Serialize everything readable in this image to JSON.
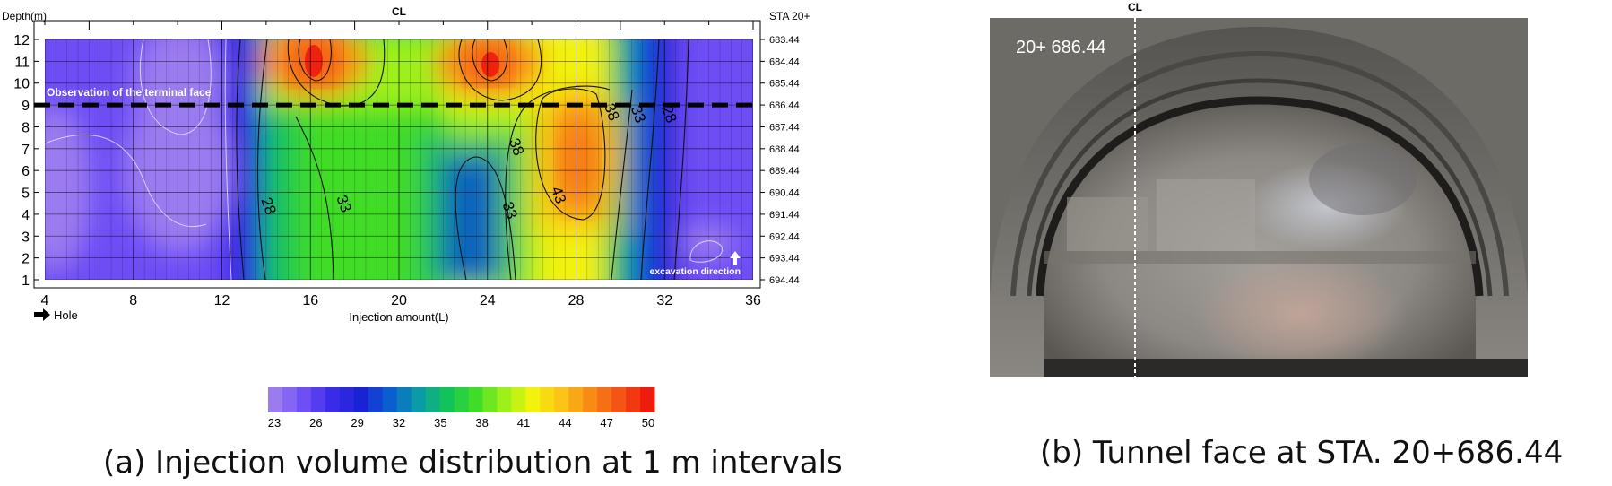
{
  "panel_a": {
    "caption": "(a) Injection volume distribution at 1 m intervals",
    "cl_label": "CL",
    "depth_label": "Depth(m)",
    "sta_label": "STA 20+",
    "hole_label": "Hole",
    "terminal_label": "Observation of the terminal face",
    "excavation_label": "excavation direction"
  },
  "panel_b": {
    "caption": "(b) Tunnel face at STA. 20+686.44",
    "cl_label": "CL",
    "station_label": "20+ 686.44"
  },
  "chart_data": {
    "type": "heatmap",
    "title": "",
    "xlabel": "Injection amount(L)",
    "ylabel": "Depth(m)",
    "xlim": [
      4,
      36
    ],
    "ylim": [
      1,
      12
    ],
    "x_ticks": [
      4,
      8,
      12,
      16,
      20,
      24,
      28,
      32,
      36
    ],
    "y_ticks": [
      1,
      2,
      3,
      4,
      5,
      6,
      7,
      8,
      9,
      10,
      11,
      12
    ],
    "station_ticks": [
      "694.44",
      "693.44",
      "692.44",
      "691.44",
      "690.44",
      "689.44",
      "688.44",
      "687.44",
      "686.44",
      "685.44",
      "684.44",
      "683.44"
    ],
    "terminal_face_depth": 9,
    "colorbar_ticks": [
      23,
      26,
      29,
      32,
      35,
      38,
      41,
      44,
      47,
      50
    ],
    "colorbar_range": [
      23,
      50
    ],
    "colorscale": [
      "#9b7cf0",
      "#6e4ef5",
      "#3a2be8",
      "#1a22d6",
      "#0a5fd0",
      "#0a9aa8",
      "#12c35a",
      "#3fdc28",
      "#9df01a",
      "#f2f20e",
      "#fbc416",
      "#f98a14",
      "#f45414",
      "#ee1c0c"
    ],
    "contour_labels": [
      {
        "text": "28",
        "x": 13.9,
        "y": 4.3
      },
      {
        "text": "33",
        "x": 17.3,
        "y": 4.4
      },
      {
        "text": "33",
        "x": 24.8,
        "y": 4.1
      },
      {
        "text": "43",
        "x": 27.0,
        "y": 4.8
      },
      {
        "text": "38",
        "x": 25.1,
        "y": 7.0
      },
      {
        "text": "38",
        "x": 29.4,
        "y": 8.6
      },
      {
        "text": "33",
        "x": 30.6,
        "y": 8.5
      },
      {
        "text": "28",
        "x": 32.0,
        "y": 8.5
      }
    ]
  }
}
